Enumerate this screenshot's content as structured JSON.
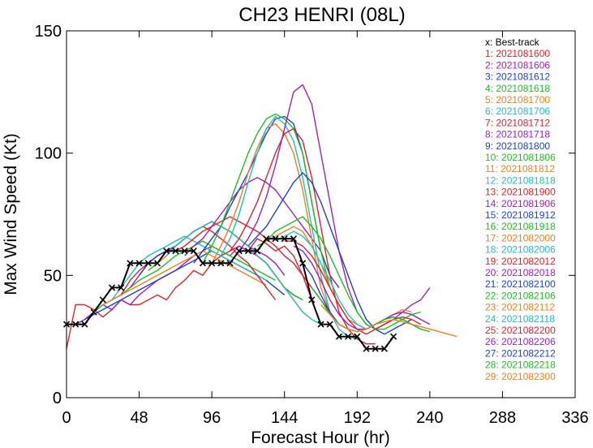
{
  "chart_data": {
    "type": "line",
    "title": "CH23  HENRI (08L)",
    "xlabel": "Forecast Hour (hr)",
    "ylabel": "Max Wind Speed (Kt)",
    "xlim": [
      0,
      336
    ],
    "ylim": [
      0,
      150
    ],
    "xticks": [
      0,
      48,
      96,
      144,
      192,
      240,
      288,
      336
    ],
    "yticks": [
      0,
      50,
      100,
      150
    ],
    "grid": false,
    "legend_position": "top-right",
    "best_track": {
      "name": "x: Best-track",
      "color": "#000000",
      "marker": "x",
      "points": [
        [
          0,
          30
        ],
        [
          6,
          30
        ],
        [
          12,
          30
        ],
        [
          18,
          35
        ],
        [
          24,
          40
        ],
        [
          30,
          45
        ],
        [
          36,
          45
        ],
        [
          42,
          55
        ],
        [
          48,
          55
        ],
        [
          54,
          55
        ],
        [
          60,
          55
        ],
        [
          66,
          60
        ],
        [
          72,
          60
        ],
        [
          78,
          60
        ],
        [
          84,
          60
        ],
        [
          90,
          55
        ],
        [
          96,
          55
        ],
        [
          102,
          55
        ],
        [
          108,
          55
        ],
        [
          114,
          60
        ],
        [
          120,
          60
        ],
        [
          126,
          60
        ],
        [
          132,
          65
        ],
        [
          138,
          65
        ],
        [
          144,
          65
        ],
        [
          150,
          65
        ],
        [
          156,
          55
        ],
        [
          162,
          40
        ],
        [
          168,
          30
        ],
        [
          174,
          30
        ],
        [
          180,
          25
        ],
        [
          186,
          25
        ],
        [
          192,
          25
        ],
        [
          198,
          20
        ],
        [
          204,
          20
        ],
        [
          210,
          20
        ],
        [
          216,
          25
        ]
      ]
    },
    "series": [
      {
        "name": "1: 2021081600",
        "color": "#e0222a",
        "start": 0,
        "values": [
          20,
          38,
          38,
          36,
          33,
          36,
          40,
          38,
          38,
          40,
          42,
          40,
          45,
          48,
          52,
          50,
          55,
          58,
          60,
          62,
          60,
          65,
          63,
          60,
          62,
          58,
          50,
          40
        ]
      },
      {
        "name": "2: 2021081606",
        "color": "#a020c8",
        "start": 6,
        "values": [
          30,
          32,
          35,
          38,
          36,
          40,
          38,
          42,
          45,
          48,
          50,
          52,
          55,
          58,
          60,
          62,
          60,
          58,
          62,
          60,
          58,
          55,
          50,
          45,
          42,
          40
        ]
      },
      {
        "name": "3: 2021081612",
        "color": "#2040d8",
        "start": 12,
        "values": [
          32,
          34,
          36,
          38,
          40,
          42,
          44,
          46,
          48,
          50,
          52,
          54,
          56,
          58,
          60,
          58,
          56,
          54,
          52,
          50,
          48,
          45,
          42
        ]
      },
      {
        "name": "4: 2021081618",
        "color": "#20c020",
        "start": 18,
        "values": [
          35,
          38,
          40,
          42,
          45,
          48,
          50,
          52,
          55,
          58,
          60,
          62,
          64,
          62,
          60,
          58,
          56,
          54,
          52,
          50,
          48
        ]
      },
      {
        "name": "5: 2021081700",
        "color": "#f08020",
        "start": 24,
        "values": [
          38,
          40,
          42,
          44,
          46,
          48,
          50,
          52,
          54,
          56,
          58,
          60,
          58,
          56,
          54,
          52,
          50,
          48,
          46
        ]
      },
      {
        "name": "6: 2021081706",
        "color": "#20c0c0",
        "start": 30,
        "values": [
          40,
          45,
          50,
          55,
          58,
          60,
          62,
          64,
          66,
          64,
          62,
          60,
          58,
          56,
          54,
          52,
          50,
          48
        ]
      },
      {
        "name": "7: 2021081712",
        "color": "#e0222a",
        "start": 36,
        "values": [
          42,
          48,
          52,
          55,
          58,
          60,
          62,
          65,
          68,
          70,
          68,
          65,
          62,
          58,
          55,
          50,
          45,
          40
        ]
      },
      {
        "name": "8: 2021081718",
        "color": "#a020c8",
        "start": 42,
        "values": [
          45,
          50,
          55,
          58,
          60,
          62,
          65,
          68,
          70,
          72,
          70,
          68,
          65,
          62,
          60,
          58,
          55,
          50
        ]
      },
      {
        "name": "9: 2021081800",
        "color": "#2040d8",
        "start": 48,
        "values": [
          50,
          55,
          58,
          60,
          62,
          65,
          68,
          70,
          72,
          70,
          68,
          65,
          62,
          58,
          55,
          50,
          45,
          42
        ]
      },
      {
        "name": "10: 2021081806",
        "color": "#20c020",
        "start": 54,
        "values": [
          52,
          55,
          58,
          62,
          65,
          68,
          70,
          72,
          70,
          68,
          65,
          62,
          58,
          55,
          50,
          45,
          42,
          40
        ]
      },
      {
        "name": "11: 2021081812",
        "color": "#f08020",
        "start": 60,
        "values": [
          55,
          58,
          62,
          65,
          68,
          70,
          72,
          70,
          68,
          65,
          62,
          58,
          55,
          50,
          45,
          40,
          35,
          32
        ]
      },
      {
        "name": "12: 2021081818",
        "color": "#20c0c0",
        "start": 66,
        "values": [
          58,
          62,
          65,
          68,
          70,
          72,
          70,
          68,
          65,
          62,
          58,
          55,
          50,
          45,
          40,
          35,
          32,
          30
        ]
      },
      {
        "name": "13: 2021081900",
        "color": "#e0222a",
        "start": 72,
        "values": [
          60,
          62,
          65,
          68,
          70,
          72,
          74,
          72,
          70,
          68,
          65,
          62,
          58,
          55,
          50,
          45,
          40,
          35
        ]
      },
      {
        "name": "14: 2021081906",
        "color": "#a020c8",
        "start": 78,
        "values": [
          58,
          62,
          65,
          70,
          75,
          80,
          85,
          88,
          90,
          88,
          85,
          80,
          75,
          70,
          65,
          60
        ]
      },
      {
        "name": "15: 2021081912",
        "color": "#2040d8",
        "start": 84,
        "values": [
          55,
          60,
          65,
          70,
          78,
          85,
          92,
          100,
          108,
          114,
          115,
          112,
          100,
          80,
          60,
          50,
          45
        ]
      },
      {
        "name": "16: 2021081918",
        "color": "#20c020",
        "start": 90,
        "values": [
          55,
          62,
          70,
          80,
          90,
          100,
          108,
          114,
          116,
          114,
          110,
          100,
          80,
          60,
          45,
          38
        ]
      },
      {
        "name": "17: 2021082000",
        "color": "#f08020",
        "start": 96,
        "values": [
          55,
          62,
          70,
          80,
          92,
          102,
          110,
          112,
          108,
          100,
          85,
          65,
          45,
          35,
          30,
          28
        ]
      },
      {
        "name": "18: 2021082006",
        "color": "#20c0c0",
        "start": 102,
        "values": [
          58,
          65,
          75,
          88,
          100,
          110,
          115,
          112,
          105,
          90,
          70,
          50,
          35,
          28,
          25,
          24
        ]
      },
      {
        "name": "19: 2021082012",
        "color": "#e0222a",
        "start": 108,
        "values": [
          60,
          65,
          72,
          80,
          90,
          100,
          108,
          110,
          105,
          90,
          70,
          50,
          35,
          28,
          24,
          22,
          22
        ]
      },
      {
        "name": "20: 2021082018",
        "color": "#a020c8",
        "start": 114,
        "values": [
          60,
          65,
          72,
          82,
          95,
          110,
          125,
          128,
          120,
          100,
          80,
          60,
          45,
          35,
          30,
          28,
          30,
          32,
          35,
          38,
          40,
          45
        ]
      },
      {
        "name": "21: 2021082100",
        "color": "#2040d8",
        "start": 120,
        "values": [
          62,
          66,
          70,
          76,
          82,
          88,
          92,
          88,
          80,
          70,
          60,
          50,
          40,
          32,
          28,
          26,
          28,
          30,
          32
        ]
      },
      {
        "name": "22: 2021082106",
        "color": "#20c020",
        "start": 126,
        "values": [
          62,
          64,
          68,
          70,
          72,
          74,
          70,
          65,
          58,
          50,
          42,
          35,
          30,
          28,
          28,
          30,
          32,
          34,
          35
        ]
      },
      {
        "name": "23: 2021082112",
        "color": "#f08020",
        "start": 132,
        "values": [
          64,
          66,
          68,
          70,
          68,
          62,
          55,
          45,
          38,
          32,
          30,
          28,
          30,
          32,
          34,
          36,
          35
        ]
      },
      {
        "name": "24: 2021082118",
        "color": "#20c0c0",
        "start": 138,
        "values": [
          64,
          66,
          68,
          66,
          62,
          55,
          48,
          40,
          34,
          30,
          28,
          30,
          32,
          34,
          35,
          34,
          32
        ]
      },
      {
        "name": "25: 2021082200",
        "color": "#e0222a",
        "start": 144,
        "values": [
          64,
          64,
          62,
          58,
          52,
          45,
          38,
          32,
          28,
          26,
          28,
          30,
          32,
          33,
          32,
          30
        ]
      },
      {
        "name": "26: 2021082206",
        "color": "#a020c8",
        "start": 150,
        "values": [
          62,
          60,
          55,
          48,
          40,
          34,
          30,
          28,
          28,
          30,
          32,
          34,
          35,
          34,
          32,
          30
        ]
      },
      {
        "name": "27: 2021082212",
        "color": "#2040d8",
        "start": 156,
        "values": [
          55,
          50,
          42,
          35,
          30,
          28,
          27,
          28,
          30,
          32,
          33,
          32,
          30,
          28
        ]
      },
      {
        "name": "28: 2021082218",
        "color": "#20c020",
        "start": 162,
        "values": [
          45,
          40,
          34,
          30,
          28,
          27,
          28,
          30,
          32,
          33,
          32,
          30,
          28,
          27
        ]
      },
      {
        "name": "29: 2021082300",
        "color": "#f08020",
        "start": 168,
        "values": [
          38,
          34,
          30,
          28,
          27,
          28,
          30,
          31,
          32,
          31,
          30,
          29,
          28,
          27,
          26,
          25
        ]
      }
    ]
  }
}
